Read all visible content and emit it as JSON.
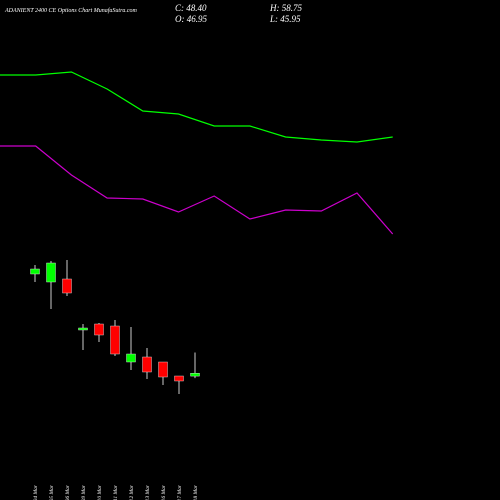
{
  "title": "ADANIENT 2400 CE Options Chart MunafaSutra.com",
  "ohlc_labels": {
    "close": "C: 48.40",
    "high": "H: 58.75",
    "open": "O: 46.95",
    "low": "L: 45.95"
  },
  "chart_data": [
    {
      "type": "line",
      "ylim": [
        0,
        220
      ],
      "series": [
        {
          "color": "#00ff00",
          "values": [
            185,
            185,
            188,
            171,
            149,
            146,
            134,
            134,
            123,
            120,
            118,
            123
          ]
        },
        {
          "color": "#cc00cc",
          "values": [
            114,
            114,
            85,
            62,
            61,
            48,
            64,
            41,
            50,
            49,
            67,
            26
          ]
        }
      ]
    },
    {
      "type": "candlestick",
      "ylim": [
        30,
        110
      ],
      "up_color": "#00ff00",
      "down_color": "#ff0000",
      "categories": [
        "04 Mar",
        "05 Mar",
        "06 Mar",
        "09 Mar",
        "10 Mar",
        "11 Mar",
        "12 Mar",
        "13 Mar",
        "16 Mar",
        "17 Mar",
        "18 Mar"
      ],
      "open": [
        98,
        94,
        95.5,
        70,
        73,
        72,
        54,
        56.5,
        54,
        47,
        46.95
      ],
      "high": [
        102.5,
        104.5,
        105,
        73,
        73.5,
        75,
        71.5,
        61,
        54,
        47,
        58.75
      ],
      "low": [
        94,
        80.5,
        87,
        60,
        64,
        57,
        50,
        45.5,
        42.5,
        38,
        45.95
      ],
      "close": [
        100.5,
        103.5,
        88.5,
        71,
        67.5,
        58,
        58,
        49,
        46.5,
        44.5,
        48.4
      ]
    }
  ]
}
